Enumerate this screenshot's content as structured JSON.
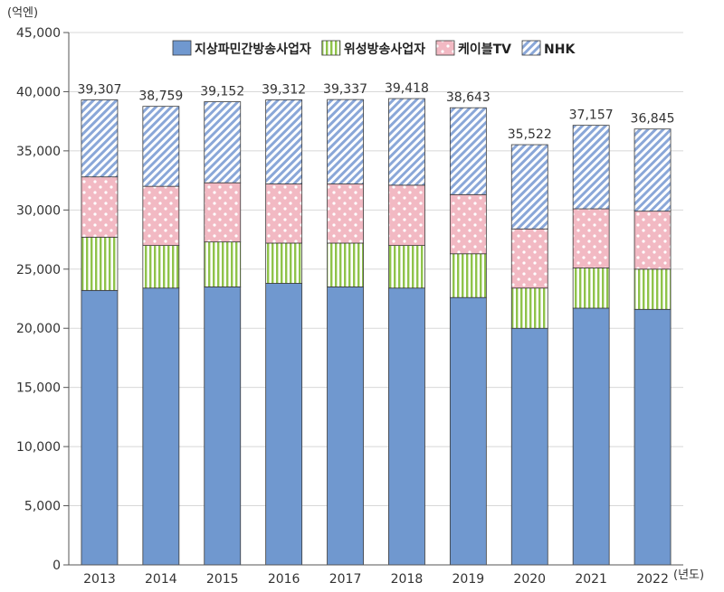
{
  "chart_data": {
    "type": "bar",
    "stacked": true,
    "y_unit": "(억엔)",
    "x_unit": "(년도)",
    "ylim": [
      0,
      45000
    ],
    "yticks": [
      "0",
      "5,000",
      "10,000",
      "15,000",
      "20,000",
      "25,000",
      "30,000",
      "35,000",
      "40,000",
      "45,000"
    ],
    "ytick_values": [
      0,
      5000,
      10000,
      15000,
      20000,
      25000,
      30000,
      35000,
      40000,
      45000
    ],
    "legend_position": "top-center",
    "categories": [
      "2013",
      "2014",
      "2015",
      "2016",
      "2017",
      "2018",
      "2019",
      "2020",
      "2021",
      "2022"
    ],
    "series": [
      {
        "name": "지상파민간방송사업자",
        "color": "#7098cf",
        "pattern": "solid",
        "values": [
          23200,
          23400,
          23500,
          23800,
          23500,
          23400,
          22600,
          20000,
          21700,
          21600
        ]
      },
      {
        "name": "위성방송사업자",
        "color": "#8fc34a",
        "pattern": "vertical-lines",
        "values": [
          4500,
          3600,
          3800,
          3400,
          3700,
          3600,
          3700,
          3400,
          3400,
          3400
        ]
      },
      {
        "name": "케이블TV",
        "color": "#f2b9c3",
        "pattern": "dots",
        "values": [
          5100,
          5000,
          5000,
          5000,
          5000,
          5100,
          5000,
          5000,
          5000,
          4900
        ]
      },
      {
        "name": "NHK",
        "color": "#8aa7d8",
        "pattern": "diagonal-lines",
        "values": [
          6507,
          6759,
          6852,
          7112,
          7137,
          7318,
          7343,
          7122,
          7057,
          6945
        ]
      }
    ],
    "totals": [
      "39,307",
      "38,759",
      "39,152",
      "39,312",
      "39,337",
      "39,418",
      "38,643",
      "35,522",
      "37,157",
      "36,845"
    ],
    "total_values": [
      39307,
      38759,
      39152,
      39312,
      39337,
      39418,
      38643,
      35522,
      37157,
      36845
    ]
  }
}
